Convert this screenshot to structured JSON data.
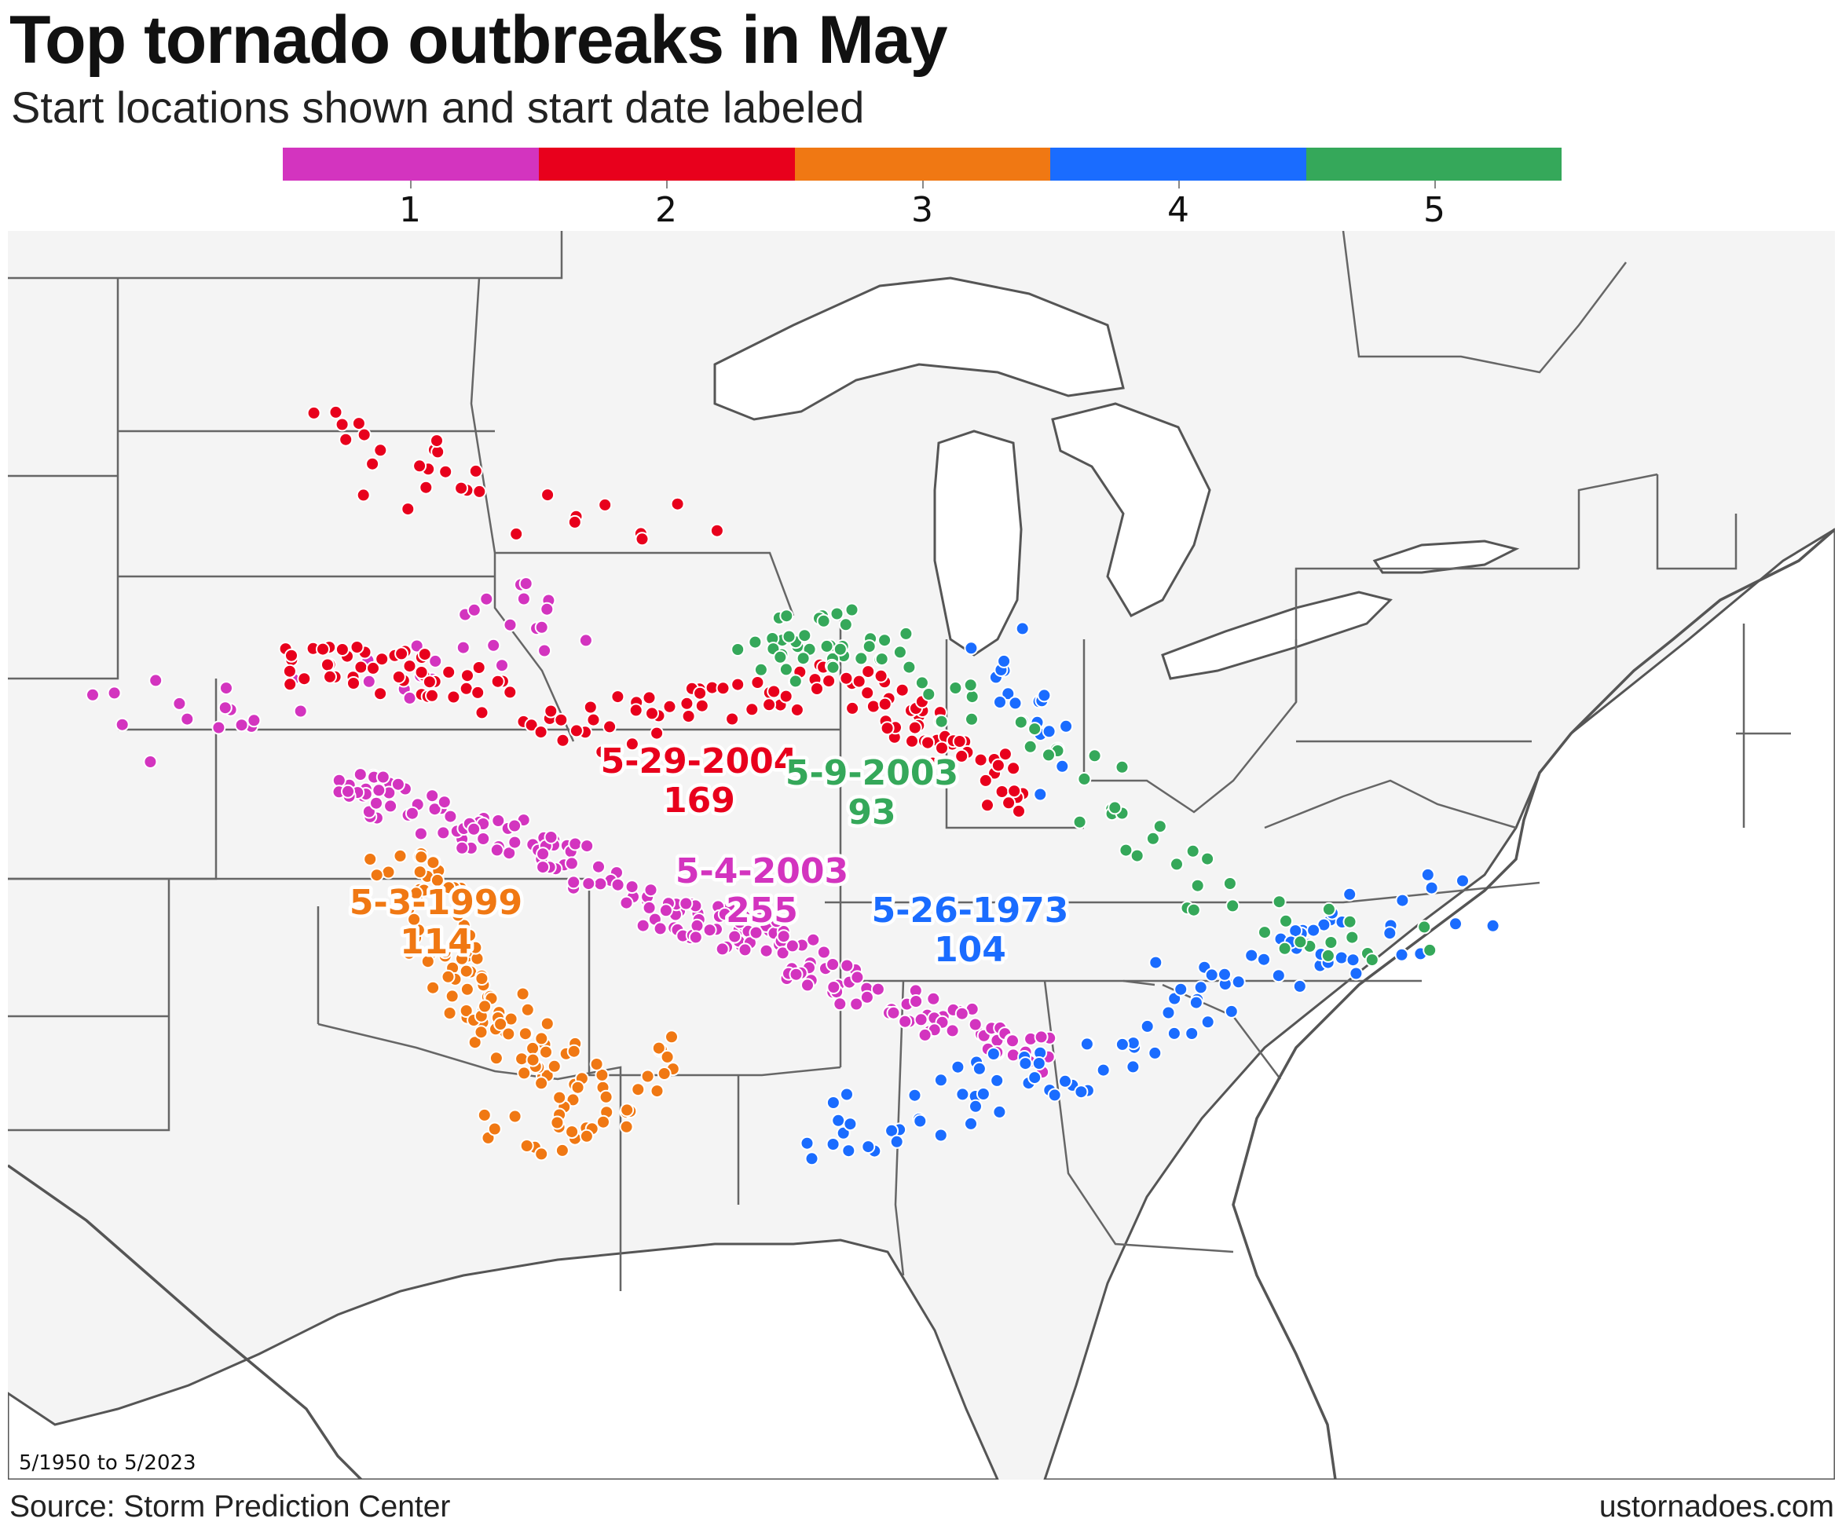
{
  "title": "Top tornado outbreaks in May",
  "subtitle": "Start locations shown and start date labeled",
  "legend": {
    "items": [
      {
        "label": "1",
        "color": "#d334bf"
      },
      {
        "label": "2",
        "color": "#e8001c"
      },
      {
        "label": "3",
        "color": "#f07813"
      },
      {
        "label": "4",
        "color": "#1a6cff"
      },
      {
        "label": "5",
        "color": "#35a85a"
      }
    ]
  },
  "map": {
    "type": "map",
    "region": "Central and eastern United States",
    "outbreaks": [
      {
        "rank": "1",
        "date": "5-4-2003",
        "count": "255",
        "color": "#d334bf"
      },
      {
        "rank": "2",
        "date": "5-29-2004",
        "count": "169",
        "color": "#e8001c"
      },
      {
        "rank": "3",
        "date": "5-3-1999",
        "count": "114",
        "color": "#f07813"
      },
      {
        "rank": "4",
        "date": "5-26-1973",
        "count": "104",
        "color": "#1a6cff"
      },
      {
        "rank": "5",
        "date": "5-9-2003",
        "count": "93",
        "color": "#35a85a"
      }
    ]
  },
  "footnote": "5/1950 to 5/2023",
  "source": "Source: Storm Prediction Center",
  "site": "ustornadoes.com"
}
